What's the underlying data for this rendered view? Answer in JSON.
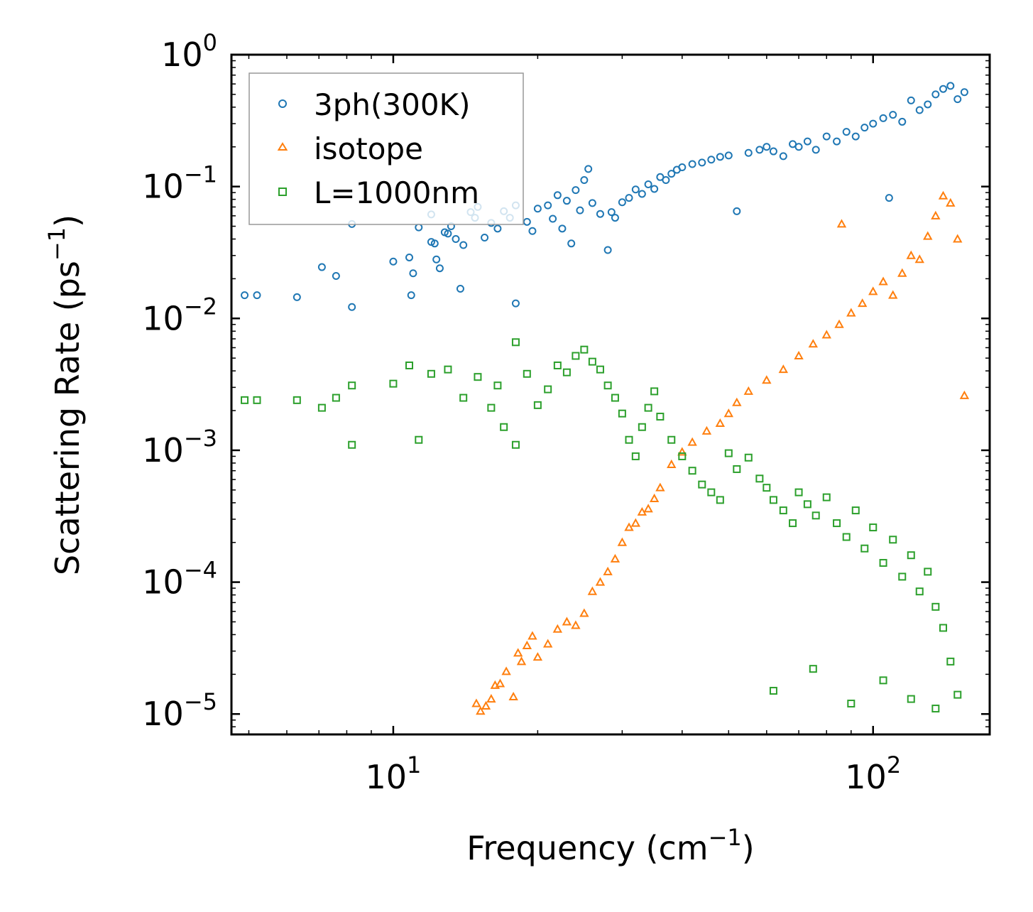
{
  "chart_data": {
    "type": "scatter",
    "title": "",
    "xlabel": "Frequency (cm$^{-1}$)",
    "xlabel_parts": {
      "base": "Frequency (cm",
      "sup": "−1",
      "tail": ")"
    },
    "ylabel": "Scattering Rate (ps$^{-1}$)",
    "ylabel_parts": {
      "base": "Scattering Rate (ps",
      "sup": "−1",
      "tail": ")"
    },
    "xscale": "log",
    "yscale": "log",
    "xlim": [
      4.6,
      175
    ],
    "ylim": [
      7e-06,
      1.0
    ],
    "x_ticks": [
      {
        "base": "10",
        "exp": "1",
        "value": 10
      },
      {
        "base": "10",
        "exp": "2",
        "value": 100
      }
    ],
    "y_ticks": [
      {
        "base": "10",
        "exp": "0",
        "value": 1
      },
      {
        "base": "10",
        "exp": "−1",
        "value": 0.1
      },
      {
        "base": "10",
        "exp": "−2",
        "value": 0.01
      },
      {
        "base": "10",
        "exp": "−3",
        "value": 0.001
      },
      {
        "base": "10",
        "exp": "−4",
        "value": 0.0001
      },
      {
        "base": "10",
        "exp": "−5",
        "value": 1e-05
      }
    ],
    "legend_position": "top-left",
    "series": [
      {
        "name": "3ph(300K)",
        "color": "#1f77b4",
        "marker": "circle",
        "points": [
          [
            4.9,
            0.015
          ],
          [
            5.2,
            0.015
          ],
          [
            6.3,
            0.0145
          ],
          [
            7.1,
            0.0245
          ],
          [
            7.6,
            0.021
          ],
          [
            8.2,
            0.0122
          ],
          [
            8.2,
            0.052
          ],
          [
            10.0,
            0.027
          ],
          [
            10.8,
            0.029
          ],
          [
            10.9,
            0.015
          ],
          [
            11.0,
            0.022
          ],
          [
            11.3,
            0.049
          ],
          [
            12.0,
            0.038
          ],
          [
            12.0,
            0.0615
          ],
          [
            12.2,
            0.037
          ],
          [
            12.3,
            0.028
          ],
          [
            12.5,
            0.024
          ],
          [
            12.8,
            0.045
          ],
          [
            13.0,
            0.044
          ],
          [
            13.2,
            0.05
          ],
          [
            13.5,
            0.04
          ],
          [
            13.8,
            0.0168
          ],
          [
            14.0,
            0.036
          ],
          [
            14.5,
            0.064
          ],
          [
            14.8,
            0.058
          ],
          [
            15.0,
            0.07
          ],
          [
            15.5,
            0.041
          ],
          [
            16.0,
            0.053
          ],
          [
            16.5,
            0.048
          ],
          [
            17.0,
            0.065
          ],
          [
            17.5,
            0.058
          ],
          [
            18.0,
            0.013
          ],
          [
            18.0,
            0.072
          ],
          [
            19.0,
            0.054
          ],
          [
            19.5,
            0.046
          ],
          [
            20.0,
            0.068
          ],
          [
            21.0,
            0.072
          ],
          [
            21.5,
            0.057
          ],
          [
            22.0,
            0.086
          ],
          [
            22.5,
            0.048
          ],
          [
            23.0,
            0.078
          ],
          [
            23.5,
            0.037
          ],
          [
            24.0,
            0.094
          ],
          [
            24.5,
            0.066
          ],
          [
            25.0,
            0.112
          ],
          [
            25.5,
            0.136
          ],
          [
            26.0,
            0.075
          ],
          [
            27.0,
            0.062
          ],
          [
            28.0,
            0.033
          ],
          [
            28.5,
            0.064
          ],
          [
            29.0,
            0.058
          ],
          [
            30.0,
            0.076
          ],
          [
            31.0,
            0.082
          ],
          [
            32.0,
            0.095
          ],
          [
            33.0,
            0.088
          ],
          [
            34.0,
            0.104
          ],
          [
            35.0,
            0.096
          ],
          [
            36.0,
            0.118
          ],
          [
            37.0,
            0.112
          ],
          [
            38.0,
            0.125
          ],
          [
            39.0,
            0.134
          ],
          [
            40.0,
            0.14
          ],
          [
            42.0,
            0.148
          ],
          [
            44.0,
            0.152
          ],
          [
            46.0,
            0.16
          ],
          [
            48.0,
            0.168
          ],
          [
            50.0,
            0.172
          ],
          [
            52.0,
            0.065
          ],
          [
            55.0,
            0.18
          ],
          [
            58.0,
            0.19
          ],
          [
            60.0,
            0.2
          ],
          [
            62.0,
            0.185
          ],
          [
            65.0,
            0.17
          ],
          [
            68.0,
            0.21
          ],
          [
            70.0,
            0.2
          ],
          [
            73.0,
            0.22
          ],
          [
            76.0,
            0.19
          ],
          [
            80.0,
            0.24
          ],
          [
            84.0,
            0.22
          ],
          [
            88.0,
            0.26
          ],
          [
            92.0,
            0.24
          ],
          [
            96.0,
            0.28
          ],
          [
            100.0,
            0.3
          ],
          [
            105.0,
            0.33
          ],
          [
            108.0,
            0.082
          ],
          [
            110.0,
            0.35
          ],
          [
            115.0,
            0.31
          ],
          [
            120.0,
            0.45
          ],
          [
            125.0,
            0.38
          ],
          [
            130.0,
            0.42
          ],
          [
            135.0,
            0.5
          ],
          [
            140.0,
            0.55
          ],
          [
            145.0,
            0.58
          ],
          [
            150.0,
            0.46
          ],
          [
            155.0,
            0.52
          ]
        ]
      },
      {
        "name": "isotope",
        "color": "#ff7f0e",
        "marker": "triangle",
        "points": [
          [
            14.9,
            1.2e-05
          ],
          [
            15.2,
            1.05e-05
          ],
          [
            15.6,
            1.15e-05
          ],
          [
            16.0,
            1.3e-05
          ],
          [
            16.3,
            1.65e-05
          ],
          [
            16.7,
            1.7e-05
          ],
          [
            17.2,
            2.1e-05
          ],
          [
            17.8,
            1.35e-05
          ],
          [
            18.2,
            2.9e-05
          ],
          [
            18.5,
            2.5e-05
          ],
          [
            19.0,
            3.3e-05
          ],
          [
            19.5,
            3.9e-05
          ],
          [
            20.0,
            2.7e-05
          ],
          [
            21.0,
            3.4e-05
          ],
          [
            22.0,
            4.4e-05
          ],
          [
            23.0,
            5e-05
          ],
          [
            24.0,
            4.7e-05
          ],
          [
            25.0,
            5.8e-05
          ],
          [
            26.0,
            8.5e-05
          ],
          [
            27.0,
            0.0001
          ],
          [
            28.0,
            0.00012
          ],
          [
            29.0,
            0.00015
          ],
          [
            30.0,
            0.0002
          ],
          [
            31.0,
            0.00026
          ],
          [
            32.0,
            0.00028
          ],
          [
            33.0,
            0.00034
          ],
          [
            34.0,
            0.00036
          ],
          [
            35.0,
            0.00043
          ],
          [
            36.0,
            0.00052
          ],
          [
            38.0,
            0.00078
          ],
          [
            40.0,
            0.00097
          ],
          [
            42.0,
            0.00115
          ],
          [
            45.0,
            0.0014
          ],
          [
            48.0,
            0.0016
          ],
          [
            50.0,
            0.0019
          ],
          [
            52.0,
            0.0023
          ],
          [
            55.0,
            0.0028
          ],
          [
            60.0,
            0.0034
          ],
          [
            65.0,
            0.0041
          ],
          [
            70.0,
            0.0052
          ],
          [
            75.0,
            0.0064
          ],
          [
            80.0,
            0.0075
          ],
          [
            85.0,
            0.009
          ],
          [
            90.0,
            0.011
          ],
          [
            95.0,
            0.013
          ],
          [
            100.0,
            0.016
          ],
          [
            105.0,
            0.019
          ],
          [
            110.0,
            0.015
          ],
          [
            115.0,
            0.022
          ],
          [
            120.0,
            0.03
          ],
          [
            125.0,
            0.028
          ],
          [
            130.0,
            0.042
          ],
          [
            135.0,
            0.06
          ],
          [
            140.0,
            0.085
          ],
          [
            145.0,
            0.075
          ],
          [
            150.0,
            0.04
          ],
          [
            155.0,
            0.0026
          ],
          [
            86.0,
            0.052
          ]
        ]
      },
      {
        "name": "L=1000nm",
        "color": "#2ca02c",
        "marker": "square",
        "points": [
          [
            4.9,
            0.0024
          ],
          [
            5.2,
            0.0024
          ],
          [
            6.3,
            0.0024
          ],
          [
            7.1,
            0.0021
          ],
          [
            7.6,
            0.0025
          ],
          [
            8.2,
            0.0011
          ],
          [
            8.2,
            0.0031
          ],
          [
            10.0,
            0.0032
          ],
          [
            10.8,
            0.0044
          ],
          [
            11.3,
            0.0012
          ],
          [
            12.0,
            0.0038
          ],
          [
            13.0,
            0.0041
          ],
          [
            14.0,
            0.0025
          ],
          [
            15.0,
            0.0036
          ],
          [
            16.0,
            0.0021
          ],
          [
            16.5,
            0.0031
          ],
          [
            17.0,
            0.0015
          ],
          [
            18.0,
            0.0011
          ],
          [
            18.0,
            0.0066
          ],
          [
            19.0,
            0.0038
          ],
          [
            20.0,
            0.0022
          ],
          [
            21.0,
            0.0029
          ],
          [
            22.0,
            0.0044
          ],
          [
            23.0,
            0.0039
          ],
          [
            24.0,
            0.0052
          ],
          [
            25.0,
            0.0058
          ],
          [
            26.0,
            0.0047
          ],
          [
            27.0,
            0.0041
          ],
          [
            28.0,
            0.0031
          ],
          [
            29.0,
            0.0025
          ],
          [
            30.0,
            0.0019
          ],
          [
            31.0,
            0.0012
          ],
          [
            32.0,
            0.0009
          ],
          [
            33.0,
            0.0015
          ],
          [
            34.0,
            0.0021
          ],
          [
            35.0,
            0.0028
          ],
          [
            36.0,
            0.0018
          ],
          [
            38.0,
            0.0012
          ],
          [
            40.0,
            0.0009
          ],
          [
            42.0,
            0.0007
          ],
          [
            44.0,
            0.00055
          ],
          [
            46.0,
            0.00048
          ],
          [
            48.0,
            0.00042
          ],
          [
            50.0,
            0.00095
          ],
          [
            52.0,
            0.00072
          ],
          [
            55.0,
            0.00088
          ],
          [
            58.0,
            0.00061
          ],
          [
            60.0,
            0.00052
          ],
          [
            62.0,
            0.00042
          ],
          [
            65.0,
            0.00035
          ],
          [
            68.0,
            0.00028
          ],
          [
            70.0,
            0.00048
          ],
          [
            73.0,
            0.00039
          ],
          [
            76.0,
            0.00032
          ],
          [
            80.0,
            0.00044
          ],
          [
            84.0,
            0.00028
          ],
          [
            88.0,
            0.00022
          ],
          [
            92.0,
            0.00035
          ],
          [
            96.0,
            0.00018
          ],
          [
            100.0,
            0.00026
          ],
          [
            105.0,
            0.00014
          ],
          [
            110.0,
            0.00021
          ],
          [
            115.0,
            0.00011
          ],
          [
            120.0,
            0.00016
          ],
          [
            125.0,
            8.5e-05
          ],
          [
            130.0,
            0.00012
          ],
          [
            135.0,
            6.5e-05
          ],
          [
            140.0,
            4.5e-05
          ],
          [
            145.0,
            2.5e-05
          ],
          [
            150.0,
            1.4e-05
          ],
          [
            62.0,
            1.5e-05
          ],
          [
            75.0,
            2.2e-05
          ],
          [
            90.0,
            1.2e-05
          ],
          [
            105.0,
            1.8e-05
          ],
          [
            120.0,
            1.3e-05
          ],
          [
            135.0,
            1.1e-05
          ]
        ]
      }
    ]
  }
}
